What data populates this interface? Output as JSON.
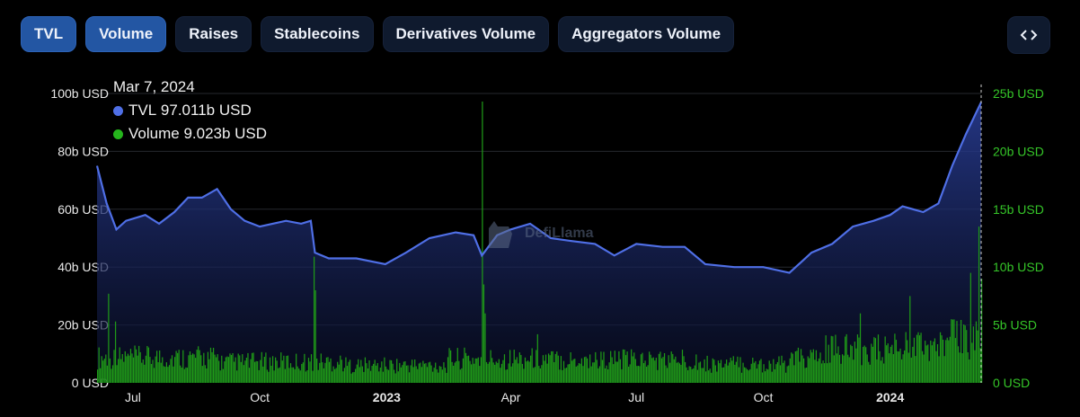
{
  "tabs": [
    {
      "label": "TVL",
      "active": true
    },
    {
      "label": "Volume",
      "active": true
    },
    {
      "label": "Raises",
      "active": false
    },
    {
      "label": "Stablecoins",
      "active": false
    },
    {
      "label": "Derivatives Volume",
      "active": false
    },
    {
      "label": "Aggregators Volume",
      "active": false
    }
  ],
  "embed_icon": "code-brackets-icon",
  "tooltip": {
    "date": "Mar 7, 2024",
    "tvl_label": "TVL",
    "tvl_value": "97.011b USD",
    "volume_label": "Volume",
    "volume_value": "9.023b USD"
  },
  "watermark": "DefiLlama",
  "colors": {
    "tvl": "#4f6fe6",
    "volume": "#25b51c",
    "active_tab": "#2356a3"
  },
  "chart_data": {
    "type": "line",
    "x_range": [
      "2022-06-05",
      "2024-03-07"
    ],
    "x_ticks": [
      {
        "label": "Jul",
        "date": "2022-07-01"
      },
      {
        "label": "Oct",
        "date": "2022-10-01"
      },
      {
        "label": "2023",
        "date": "2023-01-01",
        "bold": true
      },
      {
        "label": "Apr",
        "date": "2023-04-01"
      },
      {
        "label": "Jul",
        "date": "2023-07-01"
      },
      {
        "label": "Oct",
        "date": "2023-10-01"
      },
      {
        "label": "2024",
        "date": "2024-01-01",
        "bold": true
      }
    ],
    "y_left": {
      "range": [
        0,
        100
      ],
      "ticks": [
        0,
        20,
        40,
        60,
        80,
        100
      ],
      "tick_labels": [
        "0 USD",
        "20b USD",
        "40b USD",
        "60b USD",
        "80b USD",
        "100b USD"
      ]
    },
    "y_right": {
      "range": [
        0,
        25
      ],
      "ticks": [
        0,
        5,
        10,
        15,
        20,
        25
      ],
      "tick_labels": [
        "0 USD",
        "5b USD",
        "10b USD",
        "15b USD",
        "20b USD",
        "25b USD"
      ]
    },
    "series": [
      {
        "name": "TVL",
        "axis": "left",
        "type": "area",
        "unit": "b USD",
        "points": [
          [
            "2022-06-05",
            75
          ],
          [
            "2022-06-12",
            62
          ],
          [
            "2022-06-19",
            53
          ],
          [
            "2022-06-26",
            56
          ],
          [
            "2022-07-10",
            58
          ],
          [
            "2022-07-20",
            55
          ],
          [
            "2022-07-31",
            59
          ],
          [
            "2022-08-10",
            64
          ],
          [
            "2022-08-20",
            64
          ],
          [
            "2022-08-31",
            67
          ],
          [
            "2022-09-10",
            60
          ],
          [
            "2022-09-20",
            56
          ],
          [
            "2022-10-01",
            54
          ],
          [
            "2022-10-20",
            56
          ],
          [
            "2022-10-31",
            55
          ],
          [
            "2022-11-07",
            56
          ],
          [
            "2022-11-10",
            45
          ],
          [
            "2022-11-20",
            43
          ],
          [
            "2022-12-10",
            43
          ],
          [
            "2022-12-31",
            41
          ],
          [
            "2023-01-15",
            45
          ],
          [
            "2023-02-01",
            50
          ],
          [
            "2023-02-20",
            52
          ],
          [
            "2023-03-05",
            51
          ],
          [
            "2023-03-11",
            44
          ],
          [
            "2023-03-22",
            51
          ],
          [
            "2023-04-01",
            53
          ],
          [
            "2023-04-15",
            55
          ],
          [
            "2023-04-30",
            50
          ],
          [
            "2023-05-15",
            49
          ],
          [
            "2023-06-01",
            48
          ],
          [
            "2023-06-15",
            44
          ],
          [
            "2023-07-01",
            48
          ],
          [
            "2023-07-20",
            47
          ],
          [
            "2023-08-05",
            47
          ],
          [
            "2023-08-20",
            41
          ],
          [
            "2023-09-10",
            40
          ],
          [
            "2023-10-01",
            40
          ],
          [
            "2023-10-20",
            38
          ],
          [
            "2023-11-05",
            45
          ],
          [
            "2023-11-20",
            48
          ],
          [
            "2023-12-05",
            54
          ],
          [
            "2023-12-20",
            56
          ],
          [
            "2024-01-01",
            58
          ],
          [
            "2024-01-10",
            61
          ],
          [
            "2024-01-25",
            59
          ],
          [
            "2024-02-05",
            62
          ],
          [
            "2024-02-15",
            75
          ],
          [
            "2024-02-25",
            86
          ],
          [
            "2024-03-01",
            91
          ],
          [
            "2024-03-07",
            97
          ]
        ]
      },
      {
        "name": "Volume",
        "axis": "right",
        "type": "bar",
        "unit": "b USD",
        "daily": true,
        "baseline": 2.1,
        "spikes": [
          [
            "2022-06-13",
            7.7
          ],
          [
            "2022-06-18",
            5.3
          ],
          [
            "2022-11-09",
            10.9
          ],
          [
            "2022-11-10",
            8
          ],
          [
            "2023-03-11",
            24.3
          ],
          [
            "2023-03-12",
            8.5
          ],
          [
            "2023-03-13",
            6
          ],
          [
            "2023-04-20",
            4.2
          ],
          [
            "2023-12-10",
            6
          ],
          [
            "2024-01-15",
            7.5
          ],
          [
            "2024-02-28",
            9.5
          ],
          [
            "2024-03-05",
            13.5
          ],
          [
            "2024-03-07",
            9.0
          ]
        ],
        "level_changes": [
          [
            "2022-06-05",
            2.3
          ],
          [
            "2022-09-01",
            1.9
          ],
          [
            "2022-12-01",
            1.6
          ],
          [
            "2023-02-15",
            2.2
          ],
          [
            "2023-05-01",
            2.1
          ],
          [
            "2023-08-15",
            1.7
          ],
          [
            "2023-10-20",
            2.2
          ],
          [
            "2023-11-15",
            3.0
          ],
          [
            "2024-01-01",
            3.3
          ],
          [
            "2024-02-10",
            4.0
          ]
        ]
      }
    ],
    "crosshair": "2024-03-07"
  }
}
